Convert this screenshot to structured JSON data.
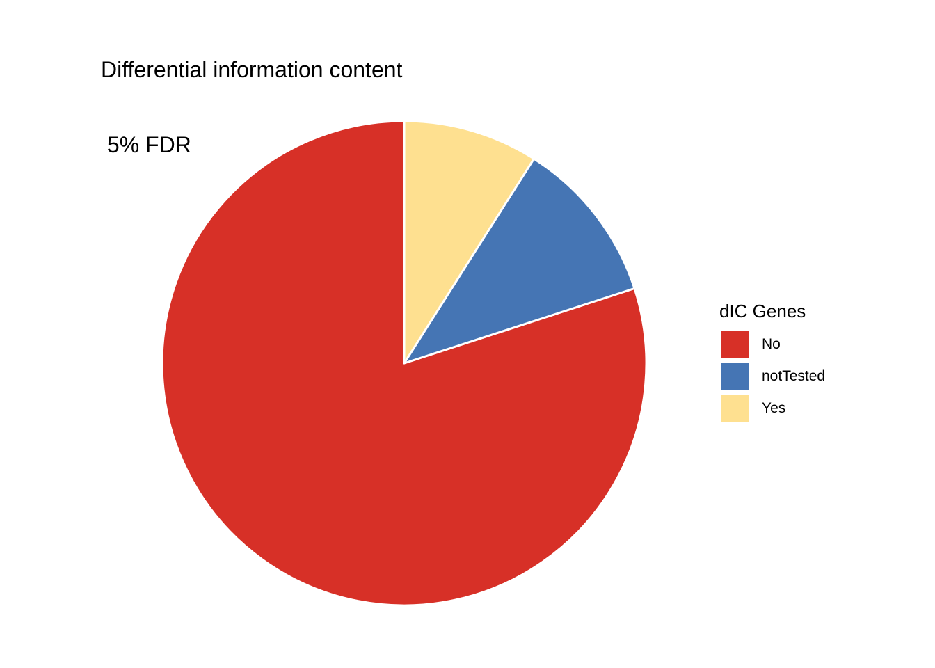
{
  "chart_data": {
    "type": "pie",
    "title_lines": [
      "Differential information content",
      " 5% FDR"
    ],
    "legend_title": "dIC Genes",
    "legend_placement": "right",
    "start": "top",
    "direction": "counterclockwise",
    "slices": [
      {
        "label": "No",
        "value": 0.8,
        "color": "#D73027"
      },
      {
        "label": "notTested",
        "value": 0.11,
        "color": "#4575B4"
      },
      {
        "label": "Yes",
        "value": 0.09,
        "color": "#FEE090"
      }
    ],
    "slice_border_color": "#ffffff"
  }
}
